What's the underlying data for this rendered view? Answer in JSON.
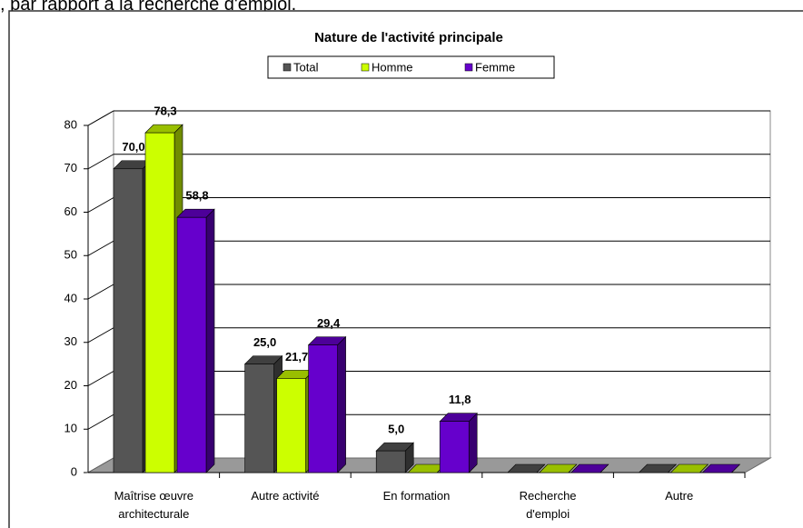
{
  "caption": ", par rapport à la recherche d'emploi.",
  "chart_data": {
    "type": "bar3d",
    "title": "Nature de l'activité principale",
    "categories": [
      "Maîtrise œuvre architecturale",
      "Autre activité",
      "En formation",
      "Recherche d'emploi",
      "Autre"
    ],
    "series": [
      {
        "name": "Total",
        "color": "#555555",
        "values": [
          70.0,
          25.0,
          5.0,
          0,
          0
        ],
        "value_labels": [
          "70,0",
          "25,0",
          "5,0",
          null,
          null
        ]
      },
      {
        "name": "Homme",
        "color": "#ccff00",
        "values": [
          78.3,
          21.7,
          0,
          0,
          0
        ],
        "value_labels": [
          "78,3",
          "21,7",
          null,
          null,
          null
        ]
      },
      {
        "name": "Femme",
        "color": "#6600cc",
        "values": [
          58.8,
          29.4,
          11.8,
          0,
          0
        ],
        "value_labels": [
          "58,8",
          "29,4",
          "11,8",
          null,
          null
        ]
      }
    ],
    "ylim": [
      0,
      80
    ],
    "yticks": [
      0,
      10,
      20,
      30,
      40,
      50,
      60,
      70,
      80
    ],
    "grid": true,
    "legend": "top"
  }
}
